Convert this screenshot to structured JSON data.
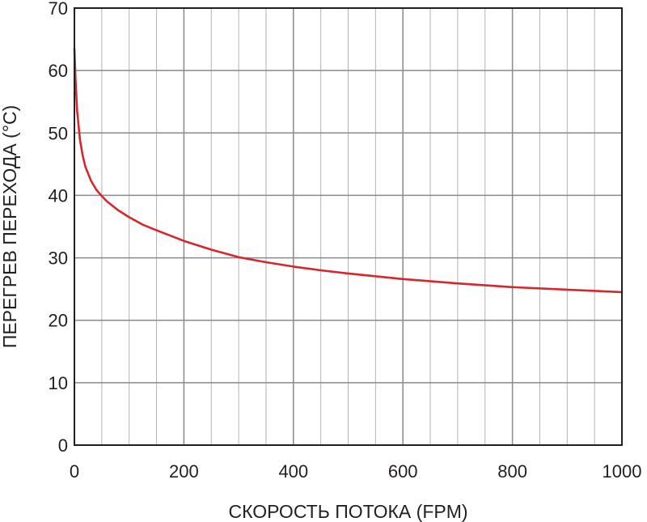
{
  "chart_data": {
    "type": "line",
    "xlabel": "СКОРОСТЬ ПОТОКА (FPM)",
    "ylabel": "ПЕРЕГРЕВ ПЕРЕХОДА (°C)",
    "xlim": [
      0,
      1000
    ],
    "ylim": [
      0,
      70
    ],
    "x_ticks": [
      0,
      200,
      400,
      600,
      800,
      1000
    ],
    "y_ticks": [
      0,
      10,
      20,
      30,
      40,
      50,
      60,
      70
    ],
    "x_minor_step": 50,
    "grid": true,
    "series": [
      {
        "color": "#d7262e",
        "x": [
          0,
          2,
          5,
          10,
          15,
          20,
          30,
          40,
          50,
          60,
          80,
          100,
          125,
          150,
          200,
          250,
          300,
          350,
          400,
          450,
          500,
          600,
          700,
          800,
          900,
          1000
        ],
        "values": [
          63.5,
          58.5,
          53.5,
          49.0,
          46.4,
          44.6,
          42.4,
          40.9,
          39.9,
          39.0,
          37.6,
          36.5,
          35.3,
          34.4,
          32.7,
          31.3,
          30.1,
          29.3,
          28.6,
          28.0,
          27.5,
          26.6,
          25.9,
          25.3,
          24.9,
          24.5
        ]
      }
    ]
  }
}
